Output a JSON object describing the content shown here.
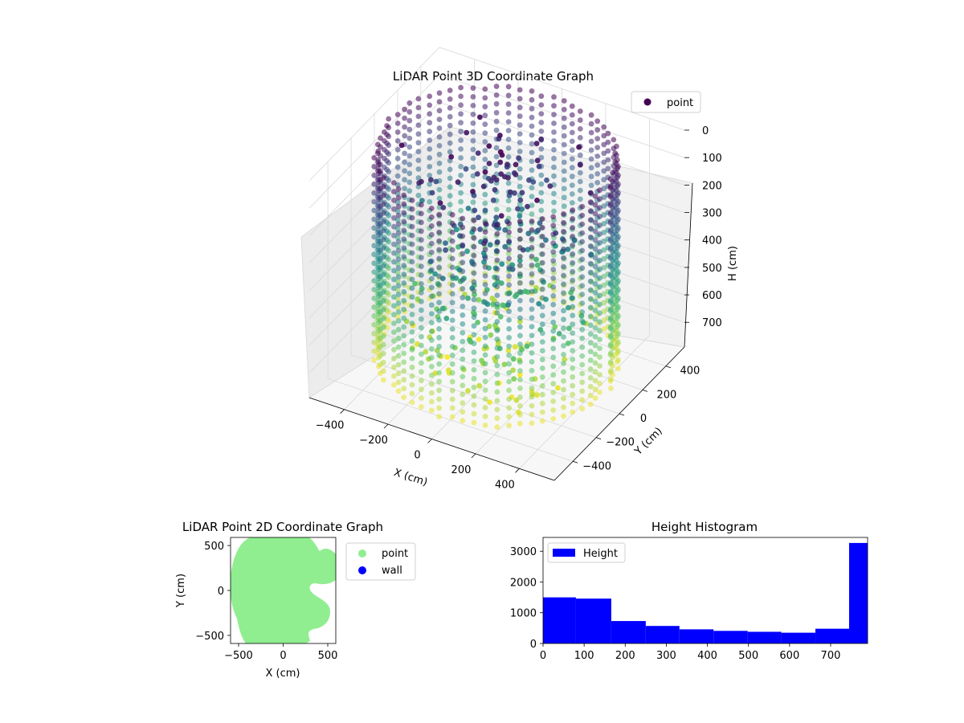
{
  "chart_data": [
    {
      "type": "scatter3d",
      "title": "LiDAR Point 3D Coordinate Graph",
      "xlabel": "X (cm)",
      "ylabel": "Y (cm)",
      "zlabel": "H (cm)",
      "xticks": [
        "−400",
        "−200",
        "0",
        "200",
        "400"
      ],
      "yticks": [
        "−400",
        "−200",
        "0",
        "200",
        "400"
      ],
      "zticks": [
        "0",
        "100",
        "200",
        "300",
        "400",
        "500",
        "600",
        "700"
      ],
      "xlim": [
        -560,
        560
      ],
      "ylim": [
        -560,
        560
      ],
      "zlim": [
        790,
        0
      ],
      "colormap": "viridis",
      "legend": {
        "position": "upper-right",
        "entries": [
          {
            "name": "point",
            "color": "#440154"
          }
        ]
      },
      "series": [
        {
          "name": "point",
          "description_points": [
            {
              "x": -480,
              "y": 0,
              "h": 0
            },
            {
              "x": 480,
              "y": 0,
              "h": 0
            },
            {
              "x": 0,
              "y": -480,
              "h": 750
            },
            {
              "x": 0,
              "y": 480,
              "h": 300
            }
          ]
        }
      ],
      "grid": true
    },
    {
      "type": "scatter",
      "title": "LiDAR Point 2D Coordinate Graph",
      "xlabel": "X (cm)",
      "ylabel": "Y (cm)",
      "xticks": [
        "−500",
        "0",
        "500"
      ],
      "yticks": [
        "−500",
        "0",
        "500"
      ],
      "xlim": [
        -590,
        590
      ],
      "ylim": [
        -590,
        590
      ],
      "legend": {
        "position": "outside-right",
        "entries": [
          {
            "name": "point",
            "color": "#90ee90"
          },
          {
            "name": "wall",
            "color": "#0000ff"
          }
        ]
      },
      "series": [
        {
          "name": "point",
          "color": "#90ee90",
          "shape": "disc-with-right-notch",
          "radius": 560
        },
        {
          "name": "wall",
          "color": "#0000ff",
          "values": []
        }
      ],
      "grid": false
    },
    {
      "type": "bar",
      "subtype": "histogram",
      "title": "Height Histogram",
      "xlabel": "",
      "ylabel": "",
      "bin_edges": [
        0,
        80,
        166,
        250,
        332,
        415,
        498,
        580,
        663,
        745,
        790
      ],
      "values": [
        1500,
        1460,
        730,
        570,
        460,
        410,
        380,
        350,
        480,
        3270
      ],
      "xlim": [
        0,
        790
      ],
      "ylim": [
        0,
        3450
      ],
      "xticks": [
        "0",
        "100",
        "200",
        "300",
        "400",
        "500",
        "600",
        "700"
      ],
      "yticks": [
        "0",
        "1000",
        "2000",
        "3000"
      ],
      "legend": {
        "position": "upper-left",
        "entries": [
          {
            "name": "Height",
            "color": "#0000ff"
          }
        ]
      },
      "color": "#0000ff",
      "grid": false
    }
  ]
}
